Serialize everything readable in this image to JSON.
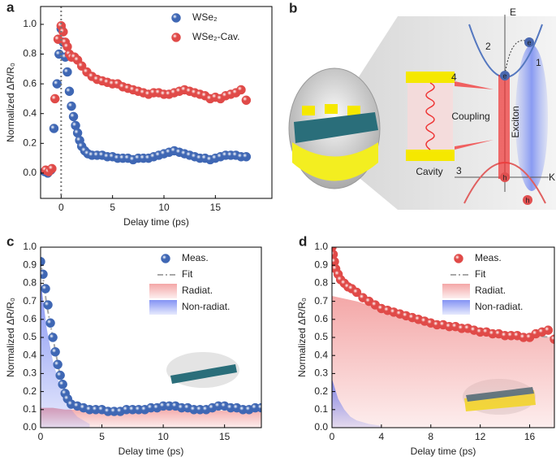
{
  "chart_data": [
    {
      "type": "scatter",
      "panel_label": "a",
      "xlabel": "Delay time (ps)",
      "ylabel": "Normalized ΔR/R₀",
      "xlim": [
        -2,
        20.5
      ],
      "ylim": [
        -0.17,
        1.12
      ],
      "xticks": [
        0,
        5,
        10,
        15
      ],
      "yticks": [
        {
          "value": 0,
          "label": "0.0"
        },
        0.2,
        0.4,
        0.6,
        0.8,
        {
          "value": 1,
          "label": "1.0"
        }
      ],
      "vline": 0,
      "legend": "upper right",
      "series": [
        {
          "name": "WSe₂",
          "type": "scatter",
          "color": "#3f67b4",
          "x": [
            -1.6,
            -1.3,
            -1.0,
            -0.7,
            -0.4,
            -0.2,
            0,
            0.2,
            0.4,
            0.6,
            0.8,
            1.0,
            1.2,
            1.4,
            1.6,
            1.8,
            2.0,
            2.3,
            2.6,
            3.0,
            3.5,
            4,
            4.5,
            5,
            5.5,
            6,
            6.5,
            7,
            7.5,
            8,
            8.5,
            9,
            9.5,
            10,
            10.5,
            11,
            11.5,
            12,
            12.5,
            13,
            13.5,
            14,
            14.5,
            15,
            15.5,
            16,
            16.5,
            17,
            17.5,
            18
          ],
          "values": [
            0.01,
            0.0,
            0.02,
            0.3,
            0.6,
            0.8,
            0.97,
            0.88,
            0.78,
            0.68,
            0.55,
            0.45,
            0.38,
            0.32,
            0.27,
            0.22,
            0.18,
            0.15,
            0.13,
            0.12,
            0.12,
            0.12,
            0.11,
            0.11,
            0.1,
            0.1,
            0.1,
            0.09,
            0.1,
            0.1,
            0.1,
            0.11,
            0.12,
            0.13,
            0.14,
            0.15,
            0.14,
            0.13,
            0.12,
            0.11,
            0.1,
            0.1,
            0.09,
            0.1,
            0.11,
            0.12,
            0.12,
            0.12,
            0.11,
            0.11
          ]
        },
        {
          "name": "WSe₂-Cav.",
          "type": "scatter",
          "color": "#e04a48",
          "x": [
            -1.5,
            -1.2,
            -0.9,
            -0.6,
            -0.3,
            0,
            0.2,
            0.4,
            0.6,
            0.8,
            1.0,
            1.3,
            1.6,
            2.0,
            2.5,
            3,
            3.5,
            4,
            4.5,
            5,
            5.5,
            6,
            6.5,
            7,
            7.5,
            8,
            8.5,
            9,
            9.5,
            10,
            10.5,
            11,
            11.5,
            12,
            12.5,
            13,
            13.5,
            14,
            14.5,
            15,
            15.5,
            16,
            16.5,
            17,
            17.5,
            18
          ],
          "values": [
            0.02,
            0.01,
            0.03,
            0.5,
            0.9,
            0.99,
            0.95,
            0.88,
            0.85,
            0.8,
            0.78,
            0.78,
            0.76,
            0.72,
            0.68,
            0.65,
            0.63,
            0.62,
            0.61,
            0.6,
            0.6,
            0.58,
            0.57,
            0.56,
            0.55,
            0.54,
            0.53,
            0.54,
            0.54,
            0.53,
            0.53,
            0.54,
            0.55,
            0.56,
            0.55,
            0.54,
            0.53,
            0.52,
            0.5,
            0.51,
            0.5,
            0.52,
            0.53,
            0.54,
            0.56,
            0.49
          ]
        }
      ]
    },
    {
      "type": "scatter",
      "panel_label": "c",
      "xlabel": "Delay time (ps)",
      "ylabel": "Normalized ΔR/R₀",
      "xlim": [
        0,
        18
      ],
      "ylim": [
        0,
        1
      ],
      "xticks": [
        0,
        5,
        10,
        15
      ],
      "yticks": [
        {
          "value": 0,
          "label": "0.0"
        },
        0.1,
        0.2,
        0.3,
        0.4,
        0.5,
        0.6,
        0.7,
        0.8,
        0.9,
        {
          "value": 1,
          "label": "1.0"
        }
      ],
      "legend": "upper right",
      "series": [
        {
          "name": "Meas.",
          "type": "scatter",
          "color": "#3f67b4",
          "x": [
            0,
            0.2,
            0.4,
            0.6,
            0.8,
            1.0,
            1.2,
            1.4,
            1.6,
            1.8,
            2.0,
            2.2,
            2.5,
            3,
            3.5,
            4,
            4.5,
            5,
            5.5,
            6,
            6.5,
            7,
            7.5,
            8,
            8.5,
            9,
            9.5,
            10,
            10.5,
            11,
            11.5,
            12,
            12.5,
            13,
            13.5,
            14,
            14.5,
            15,
            15.5,
            16,
            16.5,
            17,
            17.5,
            18
          ],
          "values": [
            0.92,
            0.85,
            0.77,
            0.68,
            0.58,
            0.5,
            0.42,
            0.35,
            0.29,
            0.24,
            0.19,
            0.16,
            0.13,
            0.12,
            0.11,
            0.1,
            0.1,
            0.1,
            0.09,
            0.09,
            0.09,
            0.1,
            0.1,
            0.1,
            0.1,
            0.11,
            0.11,
            0.12,
            0.12,
            0.12,
            0.11,
            0.11,
            0.1,
            0.1,
            0.1,
            0.11,
            0.12,
            0.12,
            0.11,
            0.11,
            0.1,
            0.1,
            0.11,
            0.11
          ]
        },
        {
          "name": "Fit",
          "type": "line",
          "color": "#a8a8a8",
          "x": [
            0,
            0.5,
            1,
            1.5,
            2,
            2.5,
            3,
            5,
            8,
            10,
            11,
            13,
            15,
            18
          ],
          "values": [
            0.93,
            0.68,
            0.5,
            0.32,
            0.2,
            0.14,
            0.12,
            0.1,
            0.1,
            0.11,
            0.12,
            0.1,
            0.11,
            0.1
          ]
        },
        {
          "name": "Radiat.",
          "type": "area",
          "color": "#f08a8a",
          "x": [
            0,
            1,
            2,
            3,
            5,
            10,
            18
          ],
          "values": [
            0.11,
            0.11,
            0.1,
            0.1,
            0.1,
            0.1,
            0.09
          ]
        },
        {
          "name": "Non-radiat.",
          "type": "area",
          "color": "#5b6ff0",
          "x": [
            0,
            0.5,
            1,
            1.5,
            2,
            2.5,
            3,
            4
          ],
          "values": [
            0.82,
            0.55,
            0.37,
            0.25,
            0.16,
            0.1,
            0.06,
            0.02
          ]
        }
      ]
    },
    {
      "type": "scatter",
      "panel_label": "d",
      "xlabel": "Delay time (ps)",
      "ylabel": "Normalized ΔR/R₀",
      "xlim": [
        0,
        18
      ],
      "ylim": [
        0,
        1
      ],
      "xticks": [
        0,
        4,
        8,
        12,
        16
      ],
      "yticks": [
        {
          "value": 0,
          "label": "0.0"
        },
        0.1,
        0.2,
        0.3,
        0.4,
        0.5,
        0.6,
        0.7,
        0.8,
        0.9,
        {
          "value": 1,
          "label": "1.0"
        }
      ],
      "legend": "upper right",
      "series": [
        {
          "name": "Meas.",
          "type": "scatter",
          "color": "#e04a48",
          "x": [
            0,
            0.1,
            0.2,
            0.3,
            0.5,
            0.7,
            1.0,
            1.3,
            1.6,
            2.0,
            2.5,
            3,
            3.5,
            4,
            4.5,
            5,
            5.5,
            6,
            6.5,
            7,
            7.5,
            8,
            8.5,
            9,
            9.5,
            10,
            10.5,
            11,
            11.5,
            12,
            12.5,
            13,
            13.5,
            14,
            14.5,
            15,
            15.5,
            16,
            16.5,
            17,
            17.5,
            18
          ],
          "values": [
            1.0,
            0.96,
            0.92,
            0.88,
            0.85,
            0.82,
            0.8,
            0.78,
            0.77,
            0.75,
            0.72,
            0.7,
            0.68,
            0.66,
            0.65,
            0.64,
            0.63,
            0.62,
            0.61,
            0.6,
            0.59,
            0.58,
            0.57,
            0.57,
            0.56,
            0.56,
            0.55,
            0.55,
            0.54,
            0.53,
            0.53,
            0.52,
            0.52,
            0.51,
            0.51,
            0.51,
            0.5,
            0.5,
            0.52,
            0.53,
            0.54,
            0.49
          ]
        },
        {
          "name": "Fit",
          "type": "line",
          "color": "#a8a8a8",
          "x": [
            0,
            1,
            2,
            4,
            6,
            8,
            10,
            12,
            14,
            16,
            18
          ],
          "values": [
            0.98,
            0.8,
            0.74,
            0.66,
            0.6,
            0.57,
            0.55,
            0.53,
            0.52,
            0.51,
            0.5
          ]
        },
        {
          "name": "Radiat.",
          "type": "area",
          "color": "#f08a8a",
          "x": [
            0,
            2,
            4,
            6,
            8,
            10,
            12,
            14,
            16,
            18
          ],
          "values": [
            0.73,
            0.7,
            0.66,
            0.61,
            0.58,
            0.56,
            0.54,
            0.52,
            0.51,
            0.5
          ]
        },
        {
          "name": "Non-radiat.",
          "type": "area",
          "color": "#5b6ff0",
          "x": [
            0,
            0.5,
            1,
            1.5,
            2,
            3,
            4
          ],
          "values": [
            0.27,
            0.16,
            0.1,
            0.06,
            0.04,
            0.02,
            0.01
          ]
        }
      ]
    }
  ],
  "diagram": {
    "panel_label": "b",
    "axis_e": "E",
    "axis_k": "K",
    "steps": [
      "1",
      "2",
      "3",
      "4"
    ],
    "coupling": "Coupling",
    "exciton": "Exciton",
    "cavity": "Cavity",
    "electron": "e",
    "hole": "h"
  }
}
